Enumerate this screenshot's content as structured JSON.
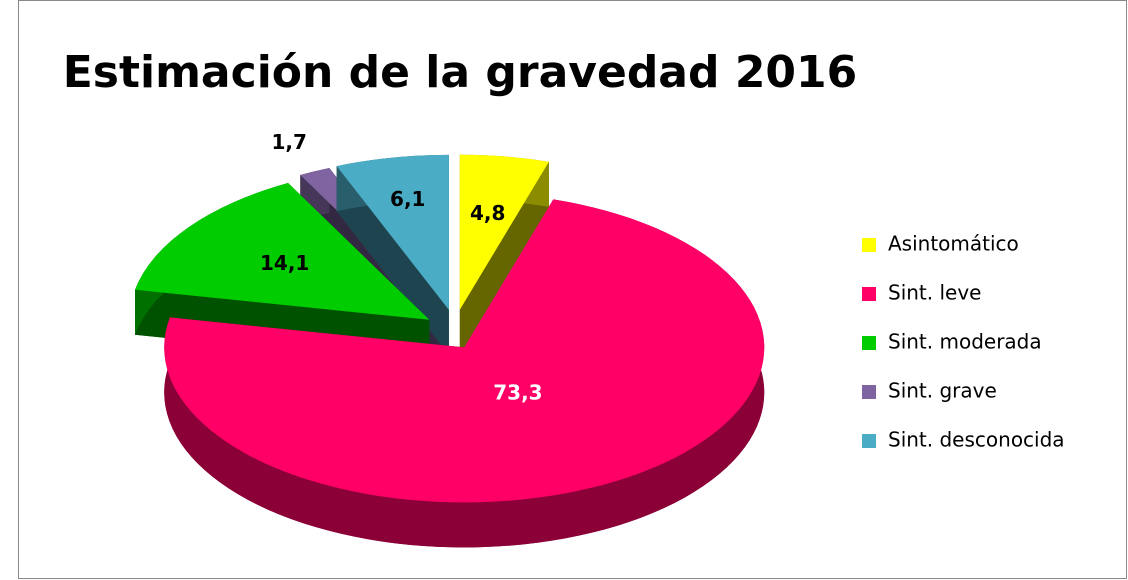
{
  "chart_data": {
    "type": "pie",
    "title": "Estimación de la gravedad 2016",
    "categories": [
      "Asintomático",
      "Sint. leve",
      "Sint. moderada",
      "Sint. grave",
      "Sint. desconocida"
    ],
    "values": [
      4.8,
      73.3,
      14.1,
      1.7,
      6.1
    ],
    "value_labels": [
      "4,8",
      "73,3",
      "14,1",
      "1,7",
      "6,1"
    ],
    "colors": [
      "#ffff00",
      "#ff0066",
      "#00cc00",
      "#8064a2",
      "#4bacc6"
    ],
    "legend": "right"
  }
}
